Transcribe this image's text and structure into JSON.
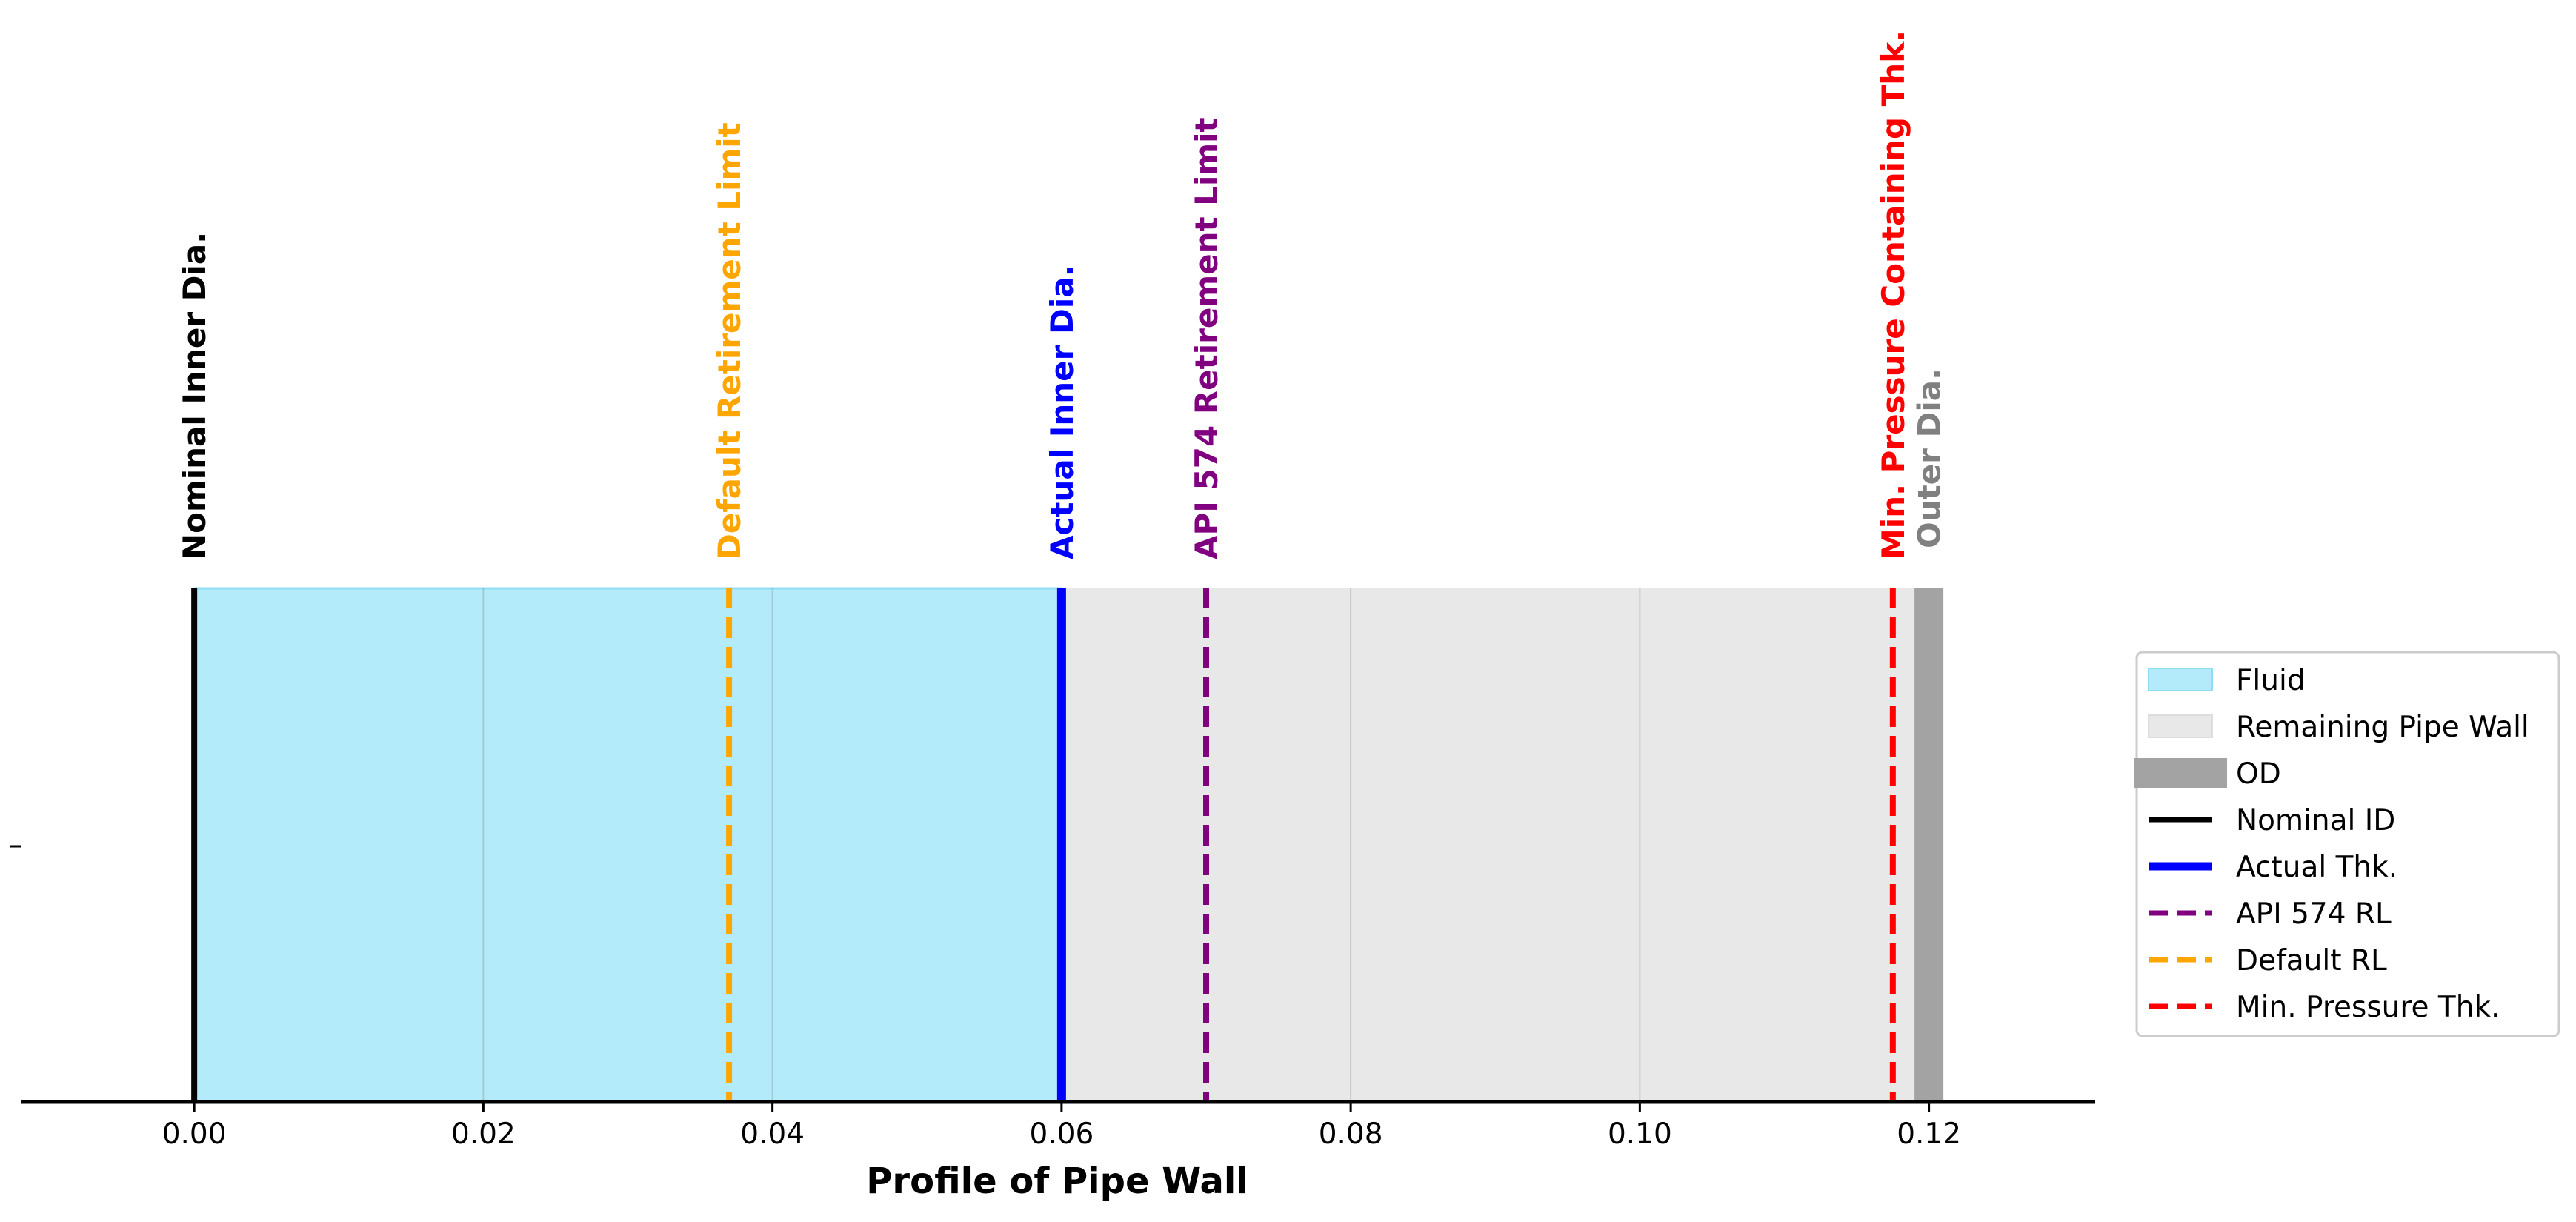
{
  "chart_data": {
    "type": "bar",
    "orientation": "horizontal",
    "xlabel": "Profile of Pipe Wall",
    "ylabel": "",
    "xlim": [
      -0.012,
      0.1315
    ],
    "xticks": [
      0.0,
      0.02,
      0.04,
      0.06,
      0.08,
      0.1,
      0.12
    ],
    "xtick_labels": [
      "0.00",
      "0.02",
      "0.04",
      "0.06",
      "0.08",
      "0.10",
      "0.12"
    ],
    "yticks": [
      ""
    ],
    "grid": true,
    "legend_position": "center-right",
    "bands": [
      {
        "name": "Fluid",
        "start": 0.0,
        "end": 0.06,
        "color": "#b3ebfb"
      },
      {
        "name": "Remaining Pipe Wall",
        "start": 0.06,
        "end": 0.119,
        "color": "#e8e8e8"
      },
      {
        "name": "OD",
        "start": 0.119,
        "end": 0.121,
        "color": "#a3a3a3"
      }
    ],
    "markers": [
      {
        "name": "Nominal ID",
        "label": "Nominal Inner Dia.",
        "x": 0.0,
        "color": "#000000",
        "style": "solid"
      },
      {
        "name": "Default RL",
        "label": "Default Retirement Limit",
        "x": 0.037,
        "color": "#ffa500",
        "style": "dashed"
      },
      {
        "name": "Actual Thk.",
        "label": "Actual Inner Dia.",
        "x": 0.06,
        "color": "#0000ff",
        "style": "solid"
      },
      {
        "name": "API 574 RL",
        "label": "API 574 Retirement Limit",
        "x": 0.07,
        "color": "#800080",
        "style": "dashed"
      },
      {
        "name": "Min. Pressure Thk.",
        "label": "Min. Pressure Containing Thk.",
        "x": 0.1175,
        "color": "#ff0000",
        "style": "dashed"
      },
      {
        "name": "OD",
        "label": "Outer Dia.",
        "x": 0.12,
        "color": "#808080",
        "style": "none"
      }
    ],
    "legend": [
      {
        "label": "Fluid",
        "kind": "patch",
        "color": "#b3ebfb"
      },
      {
        "label": "Remaining Pipe Wall",
        "kind": "patch",
        "color": "#e8e8e8"
      },
      {
        "label": "OD",
        "kind": "thick-line",
        "color": "#a3a3a3"
      },
      {
        "label": "Nominal ID",
        "kind": "line",
        "color": "#000000"
      },
      {
        "label": "Actual Thk.",
        "kind": "line-bold",
        "color": "#0000ff"
      },
      {
        "label": "API 574 RL",
        "kind": "dashed",
        "color": "#800080"
      },
      {
        "label": "Default RL",
        "kind": "dashed",
        "color": "#ffa500"
      },
      {
        "label": "Min. Pressure Thk.",
        "kind": "dashed",
        "color": "#ff0000"
      }
    ]
  }
}
